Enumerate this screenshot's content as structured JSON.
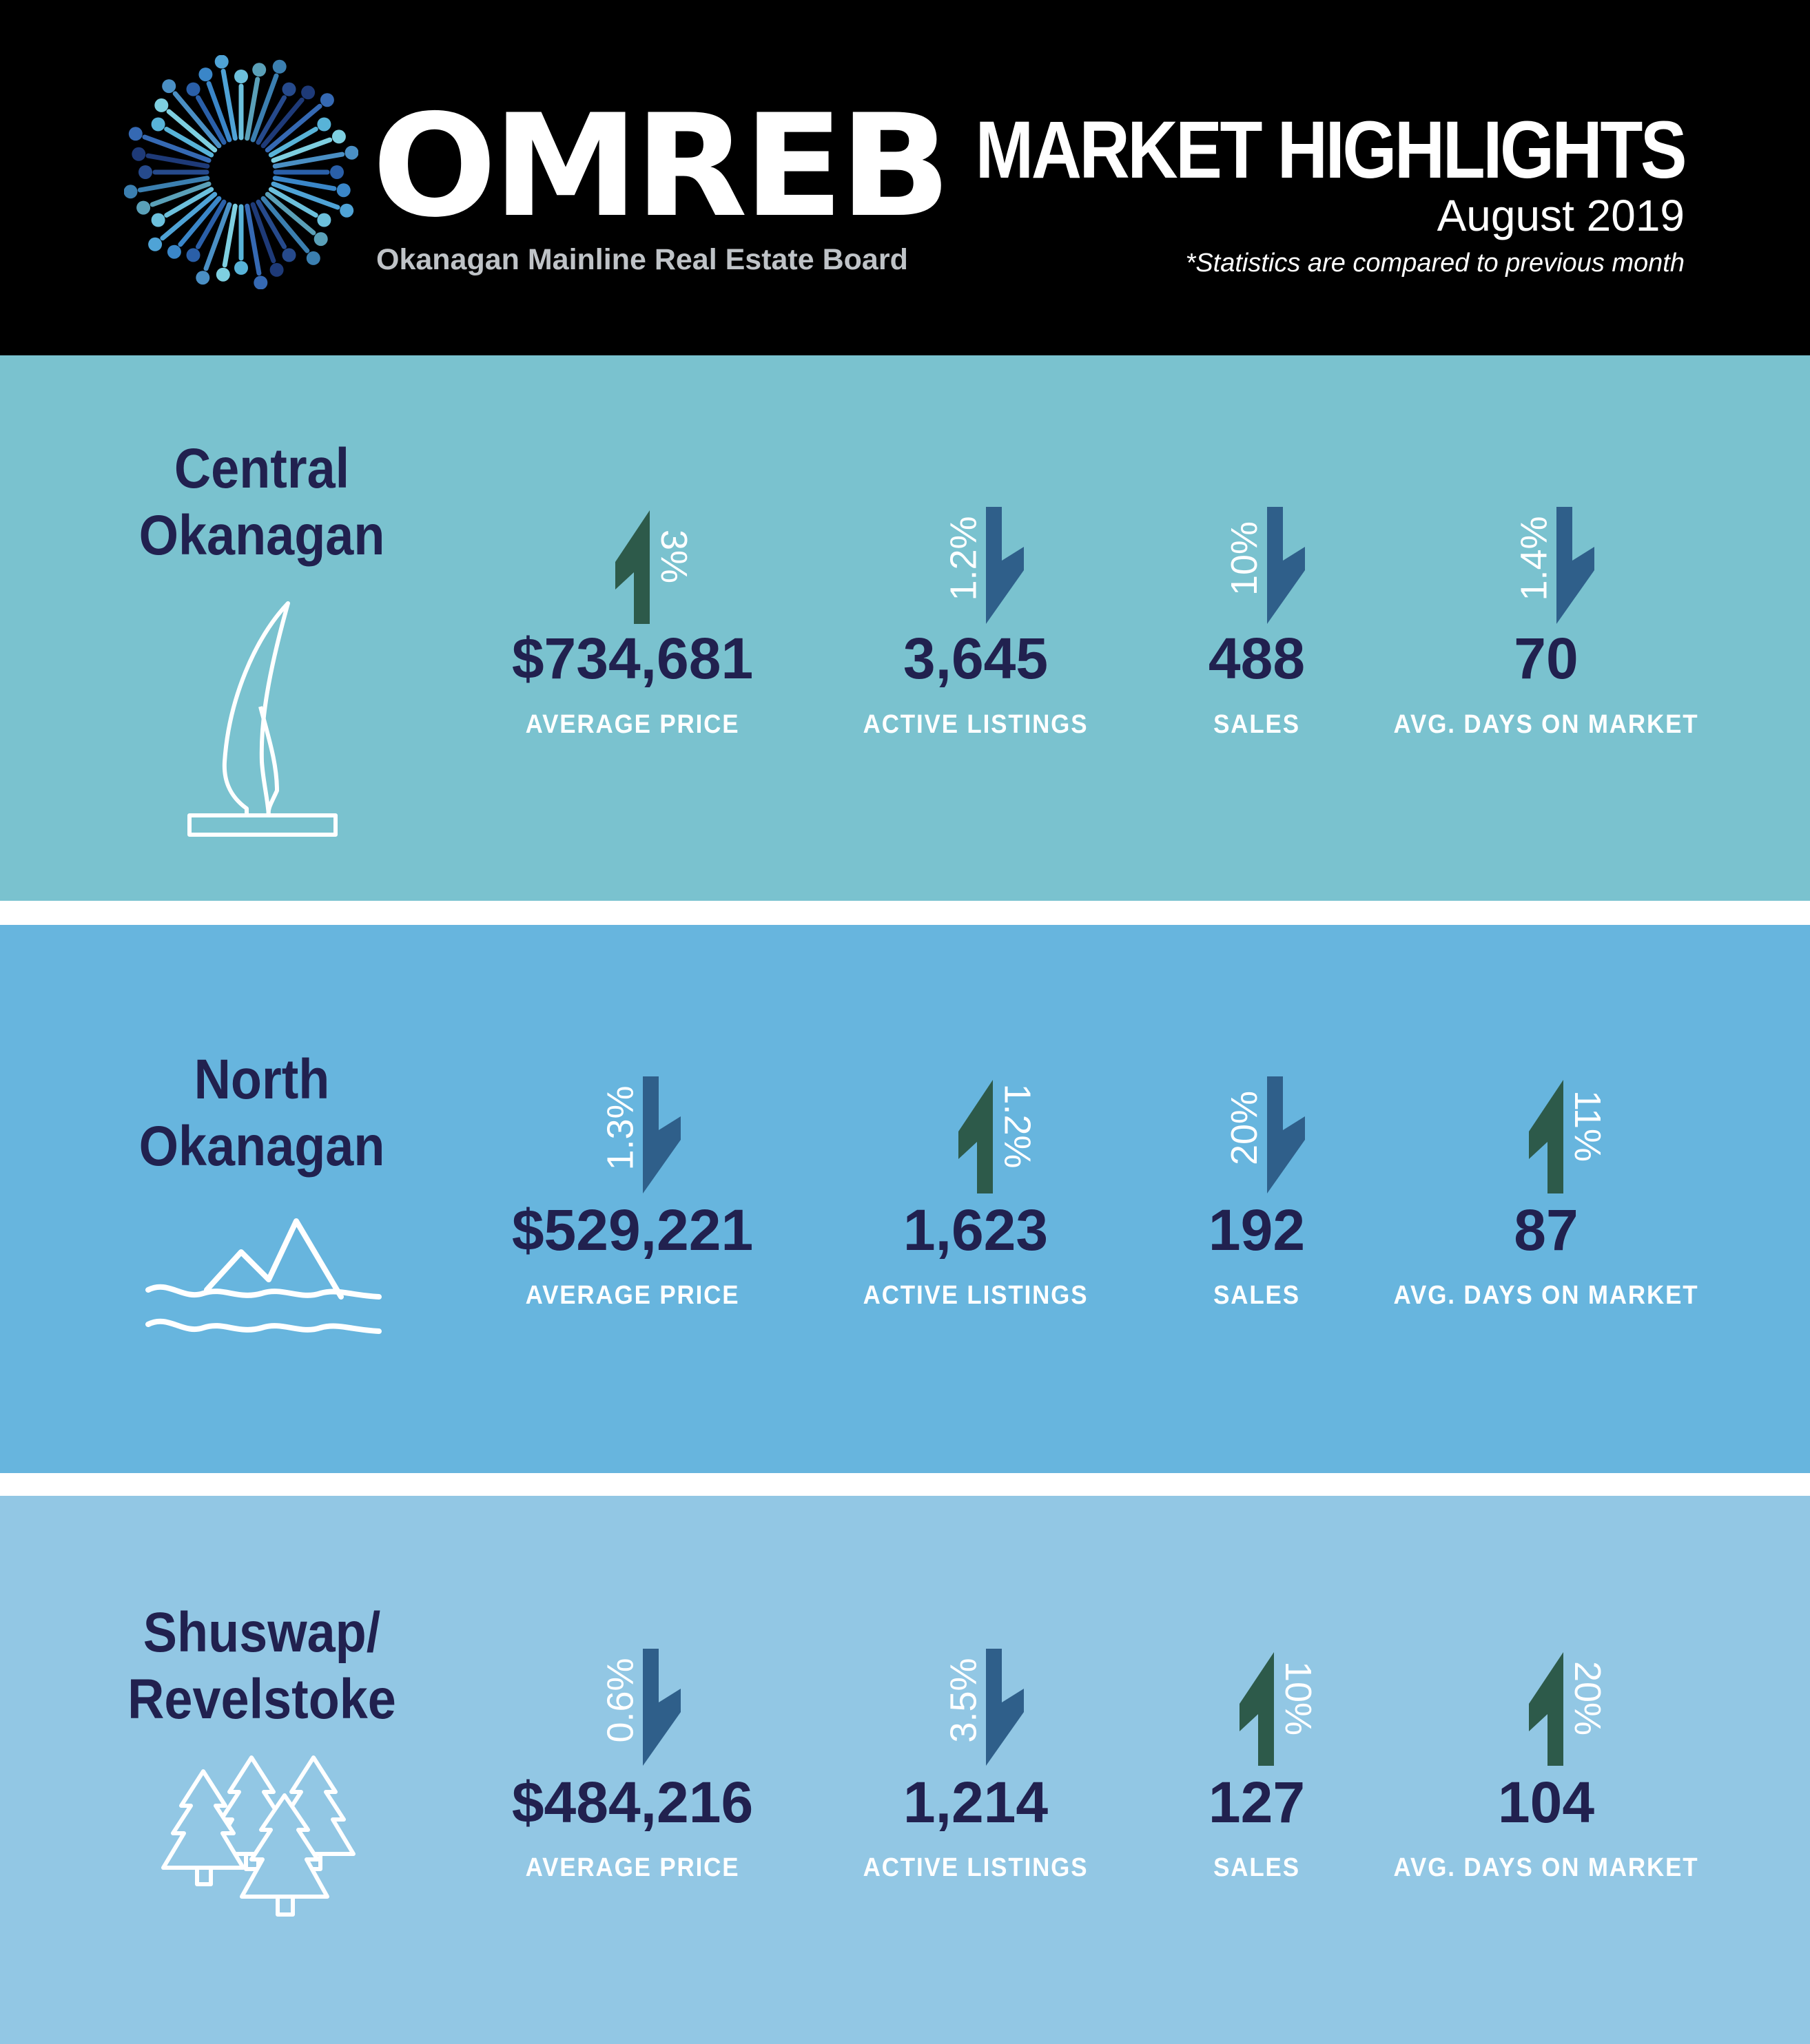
{
  "header": {
    "brand": "OMREB",
    "brand_full": "Okanagan Mainline Real Estate Board",
    "title": "MARKET HIGHLIGHTS",
    "date": "August 2019",
    "note": "*Statistics are compared to previous month"
  },
  "colors": {
    "navy": "#21214f",
    "up_arrow": "#2d5a4a",
    "down_arrow": "#2f5f8a",
    "central_bg": "#7ac2cf",
    "north_bg": "#67b5de",
    "shuswap_bg": "#92c7e4"
  },
  "regions": [
    {
      "name_line1": "Central",
      "name_line2": "Okanagan",
      "icon": "sail-sculpture-icon",
      "stats": [
        {
          "value": "$734,681",
          "label": "AVERAGE PRICE",
          "change": "3%",
          "direction": "up"
        },
        {
          "value": "3,645",
          "label": "ACTIVE LISTINGS",
          "change": "1.2%",
          "direction": "down"
        },
        {
          "value": "488",
          "label": "SALES",
          "change": "10%",
          "direction": "down"
        },
        {
          "value": "70",
          "label": "AVG. DAYS ON MARKET",
          "change": "1.4%",
          "direction": "down"
        }
      ]
    },
    {
      "name_line1": "North",
      "name_line2": "Okanagan",
      "icon": "mountains-water-icon",
      "stats": [
        {
          "value": "$529,221",
          "label": "AVERAGE PRICE",
          "change": "1.3%",
          "direction": "down"
        },
        {
          "value": "1,623",
          "label": "ACTIVE LISTINGS",
          "change": "1.2%",
          "direction": "up"
        },
        {
          "value": "192",
          "label": "SALES",
          "change": "20%",
          "direction": "down"
        },
        {
          "value": "87",
          "label": "AVG. DAYS ON MARKET",
          "change": "11%",
          "direction": "up"
        }
      ]
    },
    {
      "name_line1": "Shuswap/",
      "name_line2": "Revelstoke",
      "icon": "pine-trees-icon",
      "stats": [
        {
          "value": "$484,216",
          "label": "AVERAGE PRICE",
          "change": "0.6%",
          "direction": "down"
        },
        {
          "value": "1,214",
          "label": "ACTIVE LISTINGS",
          "change": "3.5%",
          "direction": "down"
        },
        {
          "value": "127",
          "label": "SALES",
          "change": "10%",
          "direction": "up"
        },
        {
          "value": "104",
          "label": "AVG. DAYS ON MARKET",
          "change": "20%",
          "direction": "up"
        }
      ]
    }
  ]
}
